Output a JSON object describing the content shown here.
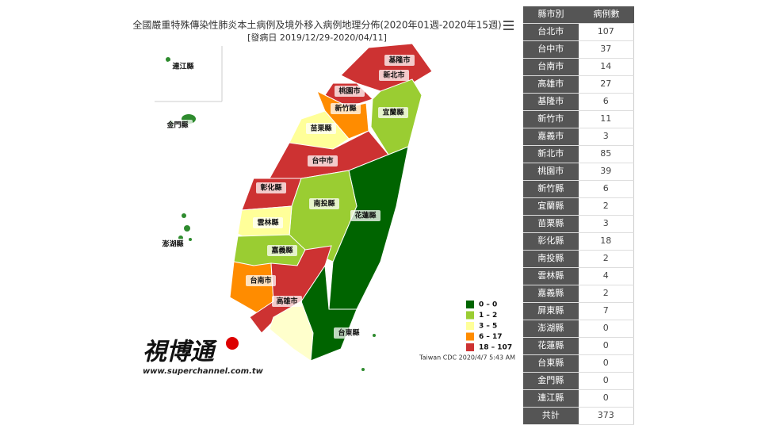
{
  "map": {
    "title": "全國嚴重特殊傳染性肺炎本土病例及境外移入病例地理分佈(2020年01週-2020年15週)",
    "subtitle": "[發病日 2019/12/29-2020/04/11]",
    "labels": [
      "連江縣",
      "金門縣",
      "澎湖縣",
      "基隆市",
      "新北市",
      "桃園市",
      "新竹縣",
      "宜蘭縣",
      "苗栗縣",
      "台中市",
      "彰化縣",
      "南投縣",
      "花蓮縣",
      "雲林縣",
      "嘉義縣",
      "台南市",
      "高雄市",
      "台東縣"
    ],
    "legend": [
      {
        "label": "0 – 0",
        "color": "#006400"
      },
      {
        "label": "1 – 2",
        "color": "#9acd32"
      },
      {
        "label": "3 – 5",
        "color": "#ffff99"
      },
      {
        "label": "6 – 17",
        "color": "#ff8c00"
      },
      {
        "label": "18 – 107",
        "color": "#cd3232"
      }
    ],
    "credit": "Taiwan CDC 2020/4/7 5:43 AM",
    "logo": "視博通",
    "logo_url": "www.superchannel.com.tw"
  },
  "table": {
    "header": [
      "縣市別",
      "病例數"
    ],
    "rows": [
      [
        "台北市",
        107
      ],
      [
        "台中市",
        37
      ],
      [
        "台南市",
        14
      ],
      [
        "高雄市",
        27
      ],
      [
        "基隆市",
        6
      ],
      [
        "新竹市",
        11
      ],
      [
        "嘉義市",
        3
      ],
      [
        "新北市",
        85
      ],
      [
        "桃園市",
        39
      ],
      [
        "新竹縣",
        6
      ],
      [
        "宜蘭縣",
        2
      ],
      [
        "苗栗縣",
        3
      ],
      [
        "彰化縣",
        18
      ],
      [
        "南投縣",
        2
      ],
      [
        "雲林縣",
        4
      ],
      [
        "嘉義縣",
        2
      ],
      [
        "屏東縣",
        7
      ],
      [
        "澎湖縣",
        0
      ],
      [
        "花蓮縣",
        0
      ],
      [
        "台東縣",
        0
      ],
      [
        "金門縣",
        0
      ],
      [
        "連江縣",
        0
      ]
    ],
    "total": [
      "共計",
      373
    ]
  }
}
